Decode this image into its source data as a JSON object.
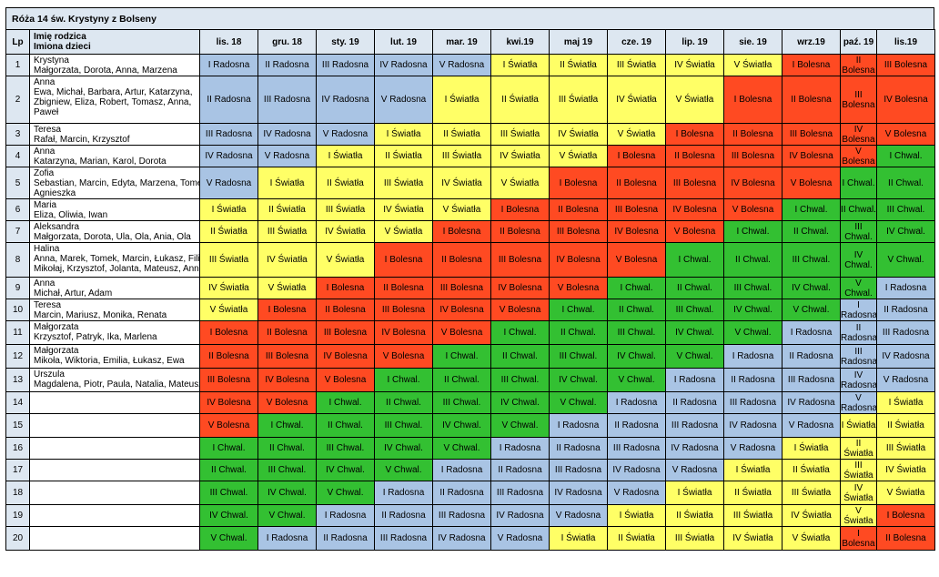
{
  "title": "Róża 14 św. Krystyny z Bolseny",
  "headers": {
    "lp": "Lp",
    "parent": "Imię rodzica",
    "children": "Imiona dzieci",
    "months": [
      "lis. 18",
      "gru. 18",
      "sty. 19",
      "lut. 19",
      "mar. 19",
      "kwi.19",
      "maj 19",
      "cze. 19",
      "lip. 19",
      "sie. 19",
      "wrz.19",
      "paź. 19",
      "lis.19"
    ]
  },
  "category_colors": {
    "Radosna": "#a9c4e4",
    "Światła": "#ffff66",
    "Bolesna": "#ff4a22",
    "Chwal.": "#33c032"
  },
  "rows": [
    {
      "lp": "1",
      "parent": "Krystyna",
      "children": [
        "Małgorzata, Dorota, Anna, Marzena"
      ],
      "cells": [
        "I Radosna",
        "II Radosna",
        "III Radosna",
        "IV Radosna",
        "V Radosna",
        "I Światła",
        "II Światła",
        "III Światła",
        "IV Światła",
        "V Światła",
        "I Bolesna",
        "II Bolesna",
        "III Bolesna"
      ]
    },
    {
      "lp": "2",
      "parent": "Anna",
      "children": [
        "Ewa, Michał, Barbara, Artur, Katarzyna,",
        "Zbigniew, Eliza, Robert, Tomasz, Anna,",
        "Paweł"
      ],
      "cells": [
        "II Radosna",
        "III Radosna",
        "IV Radosna",
        "V Radosna",
        "I Światła",
        "II Światła",
        "III Światła",
        "IV Światła",
        "V Światła",
        "I Bolesna",
        "II Bolesna",
        "III Bolesna",
        "IV Bolesna"
      ]
    },
    {
      "lp": "3",
      "parent": "Teresa",
      "children": [
        "Rafał, Marcin, Krzysztof"
      ],
      "cells": [
        "III Radosna",
        "IV Radosna",
        "V Radosna",
        "I Światła",
        "II Światła",
        "III Światła",
        "IV Światła",
        "V Światła",
        "I Bolesna",
        "II Bolesna",
        "III Bolesna",
        "IV Bolesna",
        "V Bolesna"
      ]
    },
    {
      "lp": "4",
      "parent": "Anna",
      "children": [
        "Katarzyna, Marian, Karol, Dorota"
      ],
      "cells": [
        "IV Radosna",
        "V Radosna",
        "I Światła",
        "II Światła",
        "III Światła",
        "IV Światła",
        "V Światła",
        "I Bolesna",
        "II Bolesna",
        "III Bolesna",
        "IV Bolesna",
        "V Bolesna",
        "I Chwal."
      ]
    },
    {
      "lp": "5",
      "parent": "Zofia",
      "children": [
        "Sebastian, Marcin, Edyta, Marzena, Tomek,",
        "Agnieszka"
      ],
      "cells": [
        "V Radosna",
        "I Światła",
        "II Światła",
        "III Światła",
        "IV Światła",
        "V Światła",
        "I Bolesna",
        "II Bolesna",
        "III Bolesna",
        "IV Bolesna",
        "V Bolesna",
        "I Chwal.",
        "II Chwal."
      ]
    },
    {
      "lp": "6",
      "parent": "Maria",
      "children": [
        "Eliza, Oliwia, Iwan"
      ],
      "cells": [
        "I Światła",
        "II Światła",
        "III Światła",
        "IV Światła",
        "V Światła",
        "I Bolesna",
        "II Bolesna",
        "III Bolesna",
        "IV Bolesna",
        "V Bolesna",
        "I Chwal.",
        "II Chwal.",
        "III Chwal."
      ]
    },
    {
      "lp": "7",
      "parent": "Aleksandra",
      "children": [
        "Małgorzata, Dorota, Ula, Ola, Ania, Ola"
      ],
      "cells": [
        "II Światła",
        "III Światła",
        "IV Światła",
        "V Światła",
        "I Bolesna",
        "II Bolesna",
        "III Bolesna",
        "IV Bolesna",
        "V Bolesna",
        "I Chwal.",
        "II Chwal.",
        "III Chwal.",
        "IV Chwal."
      ]
    },
    {
      "lp": "8",
      "parent": "Halina",
      "children": [
        "Anna, Marek, Tomek, Marcin, Łukasz, Filip,",
        "Mikołaj, Krzysztof, Jolanta, Mateusz, Anna"
      ],
      "cells": [
        "III Światła",
        "IV Światła",
        "V Światła",
        "I Bolesna",
        "II Bolesna",
        "III Bolesna",
        "IV Bolesna",
        "V Bolesna",
        "I Chwal.",
        "II Chwal.",
        "III Chwal.",
        "IV Chwal.",
        "V Chwal."
      ]
    },
    {
      "lp": "9",
      "parent": "Anna",
      "children": [
        "Michał, Artur, Adam"
      ],
      "cells": [
        "IV Światła",
        "V Światła",
        "I Bolesna",
        "II Bolesna",
        "III Bolesna",
        "IV Bolesna",
        "V Bolesna",
        "I Chwal.",
        "II Chwal.",
        "III Chwal.",
        "IV Chwal.",
        "V Chwal.",
        "I Radosna"
      ]
    },
    {
      "lp": "10",
      "parent": "Teresa",
      "children": [
        "Marcin, Mariusz, Monika, Renata"
      ],
      "cells": [
        "V Światła",
        "I Bolesna",
        "II Bolesna",
        "III Bolesna",
        "IV Bolesna",
        "V Bolesna",
        "I Chwal.",
        "II Chwal.",
        "III Chwal.",
        "IV Chwal.",
        "V Chwal.",
        "I Radosna",
        "II Radosna"
      ]
    },
    {
      "lp": "11",
      "parent": "Małgorzata",
      "children": [
        "Krzysztof, Patryk, Ika, Marlena"
      ],
      "cells": [
        "I Bolesna",
        "II Bolesna",
        "III Bolesna",
        "IV Bolesna",
        "V Bolesna",
        "I Chwal.",
        "II Chwal.",
        "III Chwal.",
        "IV Chwal.",
        "V Chwal.",
        "I Radosna",
        "II Radosna",
        "III Radosna"
      ]
    },
    {
      "lp": "12",
      "parent": "Małgorzata",
      "children": [
        "Mikoła, Wiktoria, Emilia, Łukasz, Ewa"
      ],
      "cells": [
        "II Bolesna",
        "III Bolesna",
        "IV Bolesna",
        "V Bolesna",
        "I Chwal.",
        "II Chwal.",
        "III Chwal.",
        "IV Chwal.",
        "V Chwal.",
        "I Radosna",
        "II Radosna",
        "III Radosna",
        "IV Radosna"
      ]
    },
    {
      "lp": "13",
      "parent": "Urszula",
      "children": [
        "Magdalena, Piotr, Paula, Natalia, Mateusz"
      ],
      "cells": [
        "III Bolesna",
        "IV Bolesna",
        "V Bolesna",
        "I Chwal.",
        "II Chwal.",
        "III Chwal.",
        "IV Chwal.",
        "V Chwal.",
        "I Radosna",
        "II Radosna",
        "III Radosna",
        "IV Radosna",
        "V Radosna"
      ]
    },
    {
      "lp": "14",
      "parent": "",
      "children": [],
      "cells": [
        "IV Bolesna",
        "V Bolesna",
        "I Chwal.",
        "II Chwal.",
        "III Chwal.",
        "IV Chwal.",
        "V Chwal.",
        "I Radosna",
        "II Radosna",
        "III Radosna",
        "IV Radosna",
        "V Radosna",
        "I Światła"
      ]
    },
    {
      "lp": "15",
      "parent": "",
      "children": [],
      "cells": [
        "V Bolesna",
        "I Chwal.",
        "II Chwal.",
        "III Chwal.",
        "IV Chwal.",
        "V Chwal.",
        "I Radosna",
        "II Radosna",
        "III Radosna",
        "IV Radosna",
        "V Radosna",
        "I Światła",
        "II Światła"
      ]
    },
    {
      "lp": "16",
      "parent": "",
      "children": [],
      "cells": [
        "I Chwal.",
        "II Chwal.",
        "III Chwal.",
        "IV Chwal.",
        "V Chwal.",
        "I Radosna",
        "II Radosna",
        "III Radosna",
        "IV Radosna",
        "V Radosna",
        "I Światła",
        "II Światła",
        "III Światła"
      ]
    },
    {
      "lp": "17",
      "parent": "",
      "children": [],
      "cells": [
        "II Chwal.",
        "III Chwal.",
        "IV Chwal.",
        "V Chwal.",
        "I Radosna",
        "II Radosna",
        "III Radosna",
        "IV Radosna",
        "V Radosna",
        "I Światła",
        "II Światła",
        "III Światła",
        "IV Światła"
      ]
    },
    {
      "lp": "18",
      "parent": "",
      "children": [],
      "cells": [
        "III Chwal.",
        "IV Chwal.",
        "V Chwal.",
        "I Radosna",
        "II Radosna",
        "III Radosna",
        "IV Radosna",
        "V Radosna",
        "I Światła",
        "II Światła",
        "III Światła",
        "IV Światła",
        "V Światła"
      ]
    },
    {
      "lp": "19",
      "parent": "",
      "children": [],
      "cells": [
        "IV Chwal.",
        "V Chwal.",
        "I Radosna",
        "II Radosna",
        "III Radosna",
        "IV Radosna",
        "V Radosna",
        "I Światła",
        "II Światła",
        "III Światła",
        "IV Światła",
        "V Światła",
        "I Bolesna"
      ]
    },
    {
      "lp": "20",
      "parent": "",
      "children": [],
      "cells": [
        "V Chwal.",
        "I Radosna",
        "II Radosna",
        "III Radosna",
        "IV Radosna",
        "V Radosna",
        "I Światła",
        "II Światła",
        "III Światła",
        "IV Światła",
        "V Światła",
        "I Bolesna",
        "II Bolesna"
      ]
    }
  ]
}
